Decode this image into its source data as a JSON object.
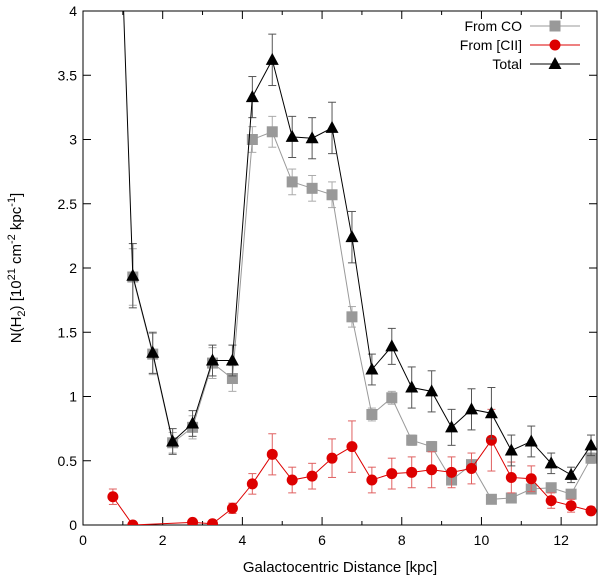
{
  "chart_data": {
    "type": "line",
    "title": "",
    "xlabel": "Galactocentric Distance [kpc]",
    "ylabel": {
      "prefix": "N(H",
      "sub": "2",
      "mid": ") [10",
      "sup1": "21",
      "mid2": " cm",
      "sup2": "-2",
      "mid3": " kpc",
      "sup3": "-1",
      "suffix": "]"
    },
    "xlim": [
      0,
      12.9
    ],
    "ylim": [
      0,
      4
    ],
    "xticks": [
      0,
      2,
      4,
      6,
      8,
      10,
      12
    ],
    "yticks": [
      0,
      0.5,
      1,
      1.5,
      2,
      2.5,
      3,
      3.5,
      4
    ],
    "xtick_labels": [
      "0",
      "2",
      "4",
      "6",
      "8",
      "10",
      "12"
    ],
    "ytick_labels": [
      "0",
      "0.5",
      "1",
      "1.5",
      "2",
      "2.5",
      "3",
      "3.5",
      "4"
    ],
    "legend_position": "top-right",
    "series": [
      {
        "name": "From CO",
        "color": "#999999",
        "marker": "square",
        "x": [
          1.25,
          1.75,
          2.25,
          2.75,
          3.25,
          3.75,
          4.25,
          4.75,
          5.25,
          5.75,
          6.25,
          6.75,
          7.25,
          7.75,
          8.25,
          8.75,
          9.25,
          9.75,
          10.25,
          10.75,
          11.25,
          11.75,
          12.25,
          12.75
        ],
        "y": [
          1.93,
          1.33,
          0.64,
          0.76,
          1.26,
          1.14,
          3.0,
          3.06,
          2.67,
          2.62,
          2.57,
          1.62,
          0.86,
          0.99,
          0.66,
          0.61,
          0.35,
          0.47,
          0.2,
          0.21,
          0.28,
          0.29,
          0.24,
          0.52
        ],
        "err": [
          0.22,
          0.16,
          0.08,
          0.09,
          0.12,
          0.1,
          0.1,
          0.12,
          0.1,
          0.1,
          0.1,
          0.08,
          0.05,
          0.05,
          0.04,
          0.04,
          0.03,
          0.03,
          0.02,
          0.02,
          0.02,
          0.02,
          0.02,
          0.04
        ]
      },
      {
        "name": "From [CII]",
        "color": "#dd0000",
        "marker": "circle",
        "x": [
          0.75,
          1.25,
          2.75,
          3.25,
          3.75,
          4.25,
          4.75,
          5.25,
          5.75,
          6.25,
          6.75,
          7.25,
          7.75,
          8.25,
          8.75,
          9.25,
          9.75,
          10.25,
          10.75,
          11.25,
          11.75,
          12.25,
          12.75
        ],
        "y": [
          0.22,
          0.0,
          0.02,
          0.01,
          0.13,
          0.32,
          0.55,
          0.35,
          0.38,
          0.52,
          0.61,
          0.35,
          0.4,
          0.41,
          0.43,
          0.41,
          0.44,
          0.66,
          0.37,
          0.36,
          0.19,
          0.15,
          0.11
        ],
        "err": [
          0.06,
          0.01,
          0.01,
          0.01,
          0.04,
          0.08,
          0.16,
          0.1,
          0.1,
          0.15,
          0.2,
          0.1,
          0.12,
          0.12,
          0.14,
          0.12,
          0.12,
          0.24,
          0.12,
          0.1,
          0.06,
          0.05,
          0.03
        ]
      },
      {
        "name": "Total",
        "color": "#000000",
        "marker": "triangle",
        "lead_in": {
          "x": [
            1.02
          ],
          "y": [
            4.0
          ]
        },
        "x": [
          1.25,
          1.75,
          2.25,
          2.75,
          3.25,
          3.75,
          4.25,
          4.75,
          5.25,
          5.75,
          6.25,
          6.75,
          7.25,
          7.75,
          8.25,
          8.75,
          9.25,
          9.75,
          10.25,
          10.75,
          11.25,
          11.75,
          12.25,
          12.75
        ],
        "y": [
          1.94,
          1.34,
          0.65,
          0.79,
          1.28,
          1.28,
          3.33,
          3.62,
          3.02,
          3.01,
          3.09,
          2.24,
          1.21,
          1.39,
          1.07,
          1.04,
          0.76,
          0.9,
          0.87,
          0.58,
          0.65,
          0.48,
          0.39,
          0.62
        ],
        "err": [
          0.25,
          0.16,
          0.1,
          0.1,
          0.12,
          0.12,
          0.16,
          0.2,
          0.16,
          0.16,
          0.2,
          0.2,
          0.12,
          0.14,
          0.16,
          0.16,
          0.14,
          0.16,
          0.2,
          0.12,
          0.12,
          0.08,
          0.06,
          0.08
        ]
      }
    ]
  }
}
